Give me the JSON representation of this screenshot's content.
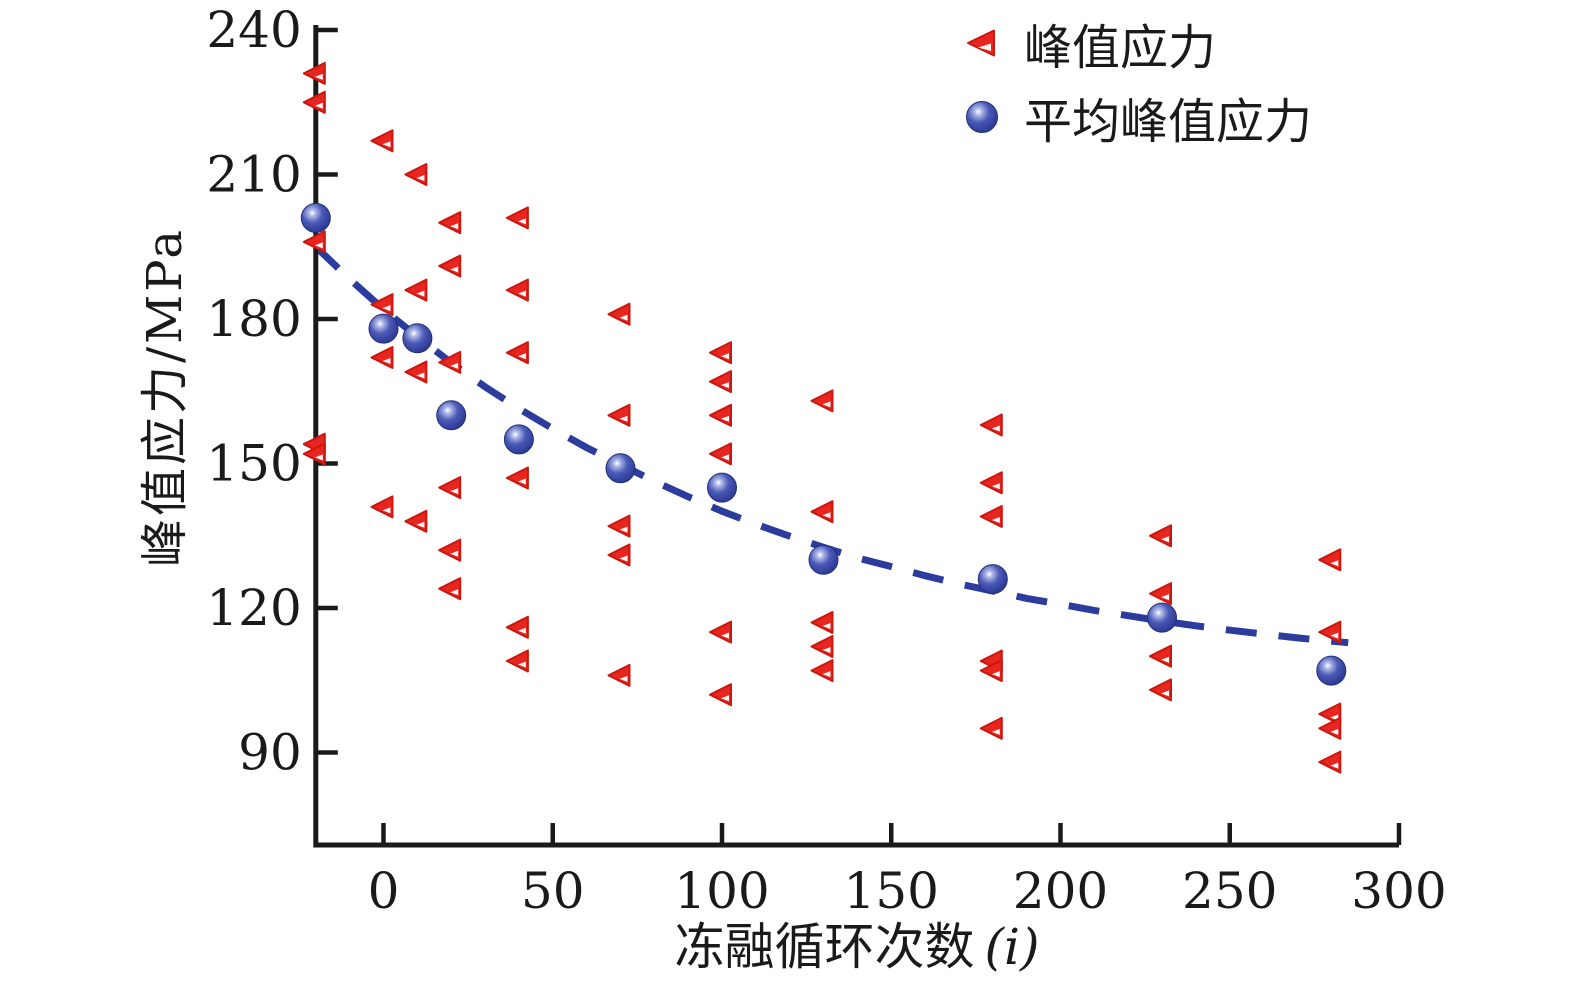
{
  "colors": {
    "background": "#ffffff",
    "axis": "#1a1a1a",
    "text": "#1a1a1a",
    "marker_red": "#e8251f",
    "marker_red_edge": "#c9180f",
    "marker_blue": "#3a49a8",
    "marker_blue_dark": "#27357f",
    "curve_blue": "#2c3c9e"
  },
  "legend": {
    "items": [
      {
        "label": "峰值应力",
        "marker": "red-left-triangle"
      },
      {
        "label": "平均峰值应力",
        "marker": "blue-sphere"
      }
    ]
  },
  "axes": {
    "ylabel": "峰值应力/MPa",
    "xlabel": "冻融循环次数",
    "xlabel_suffix": "(i)"
  },
  "chart_data": {
    "type": "scatter",
    "title": "",
    "xlabel": "冻融循环次数 (i)",
    "ylabel": "峰值应力/MPa",
    "xlim": [
      -20,
      300
    ],
    "ylim": [
      70,
      241
    ],
    "x_ticks": [
      0,
      50,
      100,
      150,
      200,
      250,
      300
    ],
    "y_ticks": [
      240,
      210,
      180,
      150,
      120,
      90
    ],
    "grid": false,
    "legend_position": "upper right",
    "series": [
      {
        "name": "峰值应力",
        "marker": "left-triangle",
        "color": "#e8251f",
        "groups": [
          {
            "x": -20,
            "values": [
              231,
              225,
              196,
              154,
              152
            ]
          },
          {
            "x": 0,
            "values": [
              217,
              183,
              172,
              141
            ]
          },
          {
            "x": 10,
            "values": [
              210,
              186,
              169,
              138
            ]
          },
          {
            "x": 20,
            "values": [
              200,
              191,
              171,
              145,
              132,
              124
            ]
          },
          {
            "x": 40,
            "values": [
              201,
              186,
              173,
              147,
              116,
              109
            ]
          },
          {
            "x": 70,
            "values": [
              181,
              160,
              137,
              131,
              106
            ]
          },
          {
            "x": 100,
            "values": [
              173,
              167,
              160,
              152,
              115,
              102
            ]
          },
          {
            "x": 130,
            "values": [
              163,
              140,
              117,
              112,
              107
            ]
          },
          {
            "x": 180,
            "values": [
              158,
              146,
              139,
              109,
              107,
              95
            ]
          },
          {
            "x": 230,
            "values": [
              135,
              123,
              110,
              103
            ]
          },
          {
            "x": 280,
            "values": [
              130,
              115,
              98,
              95,
              88
            ]
          }
        ]
      },
      {
        "name": "平均峰值应力",
        "marker": "circle",
        "color": "#3a49a8",
        "points": [
          [
            -20,
            201
          ],
          [
            0,
            178
          ],
          [
            10,
            176
          ],
          [
            20,
            160
          ],
          [
            40,
            155
          ],
          [
            70,
            149
          ],
          [
            100,
            145
          ],
          [
            130,
            130
          ],
          [
            180,
            126
          ],
          [
            230,
            118
          ],
          [
            280,
            107
          ]
        ]
      }
    ],
    "fit_curve": {
      "style": "dashed",
      "color": "#2c3c9e",
      "points": [
        [
          -20,
          195.0
        ],
        [
          -10,
          188.3
        ],
        [
          0,
          182.0
        ],
        [
          10,
          176.3
        ],
        [
          20,
          170.9
        ],
        [
          30,
          165.9
        ],
        [
          40,
          161.4
        ],
        [
          50,
          157.2
        ],
        [
          60,
          153.3
        ],
        [
          70,
          149.8
        ],
        [
          80,
          146.3
        ],
        [
          90,
          143.1
        ],
        [
          100,
          140.1
        ],
        [
          110,
          137.4
        ],
        [
          120,
          134.9
        ],
        [
          130,
          132.6
        ],
        [
          140,
          130.4
        ],
        [
          150,
          128.6
        ],
        [
          160,
          126.7
        ],
        [
          170,
          125.0
        ],
        [
          180,
          123.5
        ],
        [
          190,
          122.0
        ],
        [
          200,
          120.8
        ],
        [
          210,
          119.5
        ],
        [
          220,
          118.4
        ],
        [
          230,
          117.3
        ],
        [
          240,
          116.3
        ],
        [
          250,
          115.4
        ],
        [
          260,
          114.6
        ],
        [
          270,
          113.8
        ],
        [
          280,
          113.1
        ],
        [
          285,
          112.8
        ]
      ]
    }
  }
}
